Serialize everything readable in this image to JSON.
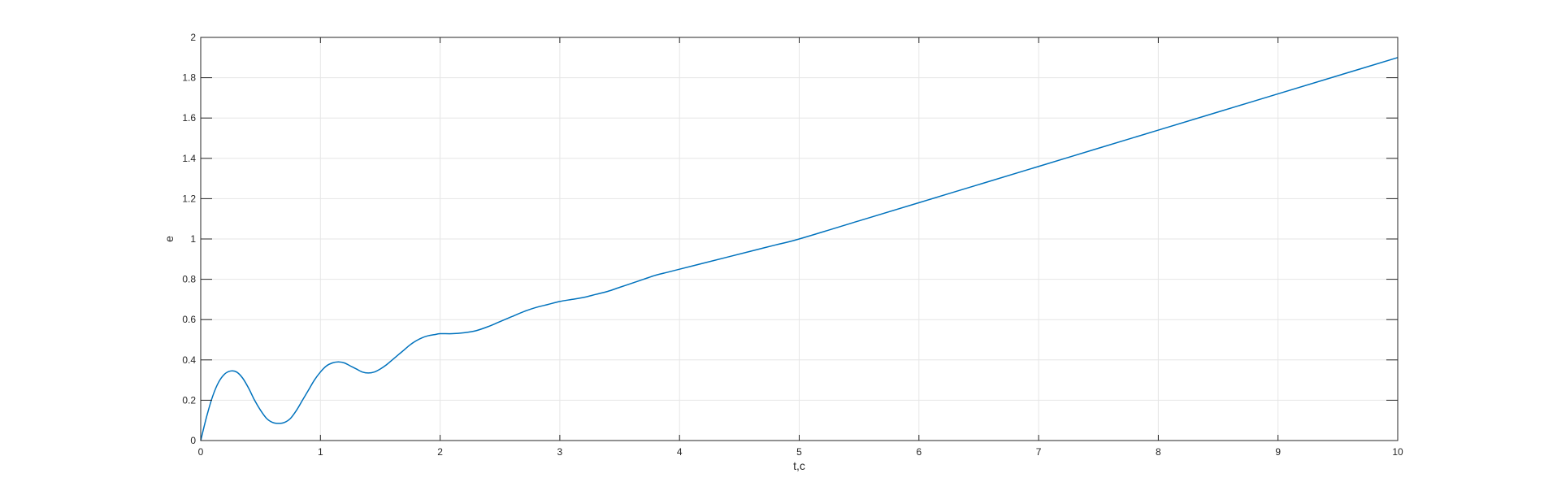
{
  "chart_data": {
    "type": "line",
    "title": "",
    "xlabel": "t,c",
    "ylabel": "e",
    "xlim": [
      0,
      10
    ],
    "ylim": [
      0,
      2
    ],
    "xticks": [
      "0",
      "1",
      "2",
      "3",
      "4",
      "5",
      "6",
      "7",
      "8",
      "9",
      "10"
    ],
    "yticks": [
      "0",
      "0.2",
      "0.4",
      "0.6",
      "0.8",
      "1",
      "1.2",
      "1.4",
      "1.6",
      "1.8",
      "2"
    ],
    "grid": true,
    "series": [
      {
        "color": "#0072BD",
        "x": [
          0,
          0.05,
          0.1,
          0.15,
          0.2,
          0.25,
          0.3,
          0.35,
          0.4,
          0.45,
          0.5,
          0.55,
          0.6,
          0.65,
          0.7,
          0.75,
          0.8,
          0.85,
          0.9,
          0.95,
          1.0,
          1.05,
          1.1,
          1.15,
          1.2,
          1.25,
          1.3,
          1.35,
          1.4,
          1.45,
          1.5,
          1.55,
          1.6,
          1.65,
          1.7,
          1.75,
          1.8,
          1.85,
          1.9,
          1.95,
          2.0,
          2.1,
          2.2,
          2.3,
          2.4,
          2.5,
          2.6,
          2.7,
          2.8,
          2.9,
          3.0,
          3.1,
          3.2,
          3.3,
          3.4,
          3.5,
          3.6,
          3.7,
          3.8,
          3.9,
          4.0,
          4.2,
          4.4,
          4.6,
          4.8,
          5.0,
          5.5,
          6.0,
          6.5,
          7.0,
          7.5,
          8.0,
          8.5,
          9.0,
          9.5,
          10.0
        ],
        "y": [
          0,
          0.12,
          0.22,
          0.29,
          0.33,
          0.345,
          0.34,
          0.31,
          0.26,
          0.2,
          0.15,
          0.11,
          0.09,
          0.085,
          0.09,
          0.11,
          0.15,
          0.2,
          0.25,
          0.3,
          0.34,
          0.37,
          0.385,
          0.39,
          0.385,
          0.37,
          0.355,
          0.34,
          0.335,
          0.34,
          0.355,
          0.375,
          0.4,
          0.425,
          0.45,
          0.475,
          0.495,
          0.51,
          0.52,
          0.525,
          0.53,
          0.53,
          0.535,
          0.545,
          0.565,
          0.59,
          0.615,
          0.64,
          0.66,
          0.675,
          0.69,
          0.7,
          0.71,
          0.725,
          0.74,
          0.76,
          0.78,
          0.8,
          0.82,
          0.835,
          0.85,
          0.88,
          0.91,
          0.94,
          0.97,
          1.0,
          1.09,
          1.18,
          1.27,
          1.36,
          1.45,
          1.54,
          1.63,
          1.72,
          1.81,
          1.9
        ]
      }
    ]
  }
}
